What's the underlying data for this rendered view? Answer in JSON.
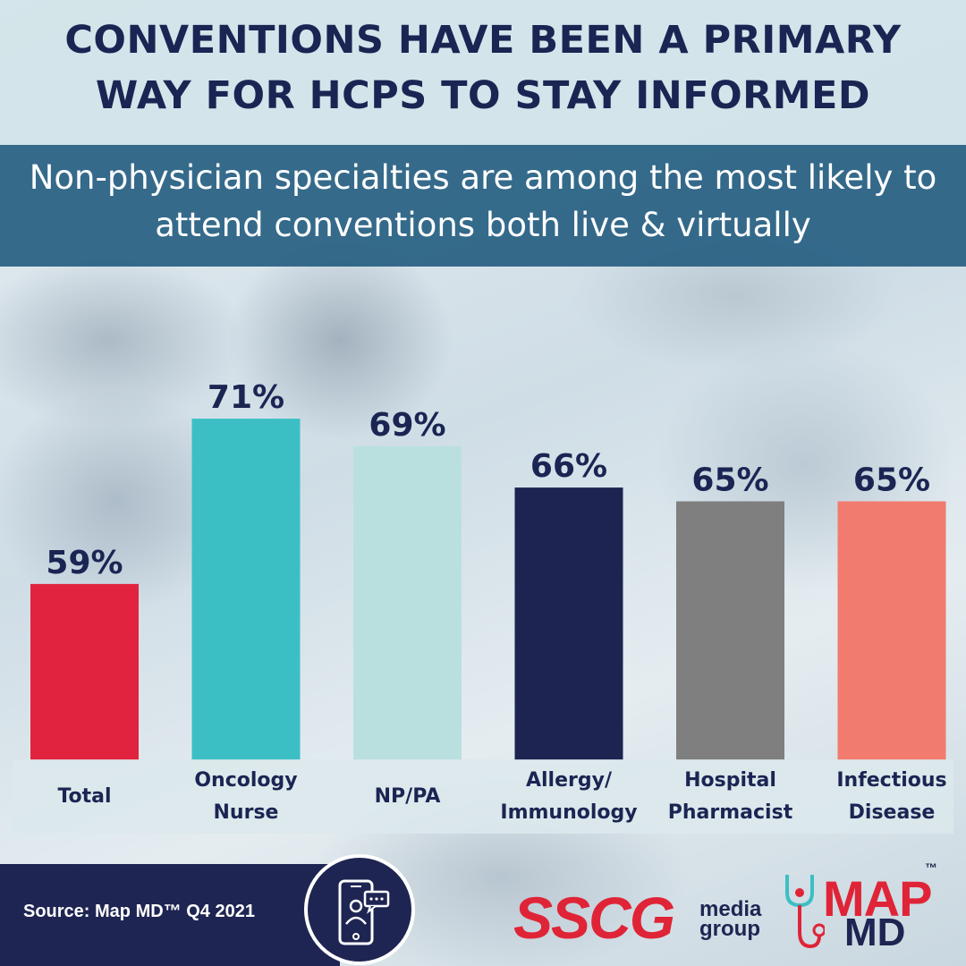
{
  "header": {
    "title": "CONVENTIONS HAVE BEEN A PRIMARY WAY FOR HCPS TO STAY INFORMED",
    "subtitle": "Non-physician specialties are among the most likely to attend conventions both live & virtually"
  },
  "chart_data": {
    "type": "bar",
    "categories": [
      "Total",
      "Oncology Nurse",
      "NP/PA",
      "Allergy/ Immunology",
      "Hospital Pharmacist",
      "Infectious Disease"
    ],
    "category_labels": [
      "Total",
      "Oncology\nNurse",
      "NP/PA",
      "Allergy/\nImmunology",
      "Hospital\nPharmacist",
      "Infectious\nDisease"
    ],
    "values": [
      59,
      71,
      69,
      66,
      65,
      65
    ],
    "value_labels": [
      "59%",
      "71%",
      "69%",
      "66%",
      "65%",
      "65%"
    ],
    "colors": [
      "#e2233f",
      "#3cbfc4",
      "#b9e0df",
      "#1d2452",
      "#7f7f7f",
      "#f17b6f"
    ],
    "label_color": "#1b2553",
    "grid": false,
    "legend": "none"
  },
  "footer": {
    "source": "Source: Map MD™ Q4 2021",
    "phone_icon": "mobile-chat-icon",
    "sscg_logo_main": "SSCG",
    "sscg_logo_sub_1": "media",
    "sscg_logo_sub_2": "group",
    "mapmd_logo_top": "MAP",
    "mapmd_logo_bottom": "MD",
    "mapmd_tm": "™"
  },
  "colors": {
    "navy": "#1e2552",
    "teal_bar": "#225c80",
    "brand_red": "#e02437"
  }
}
